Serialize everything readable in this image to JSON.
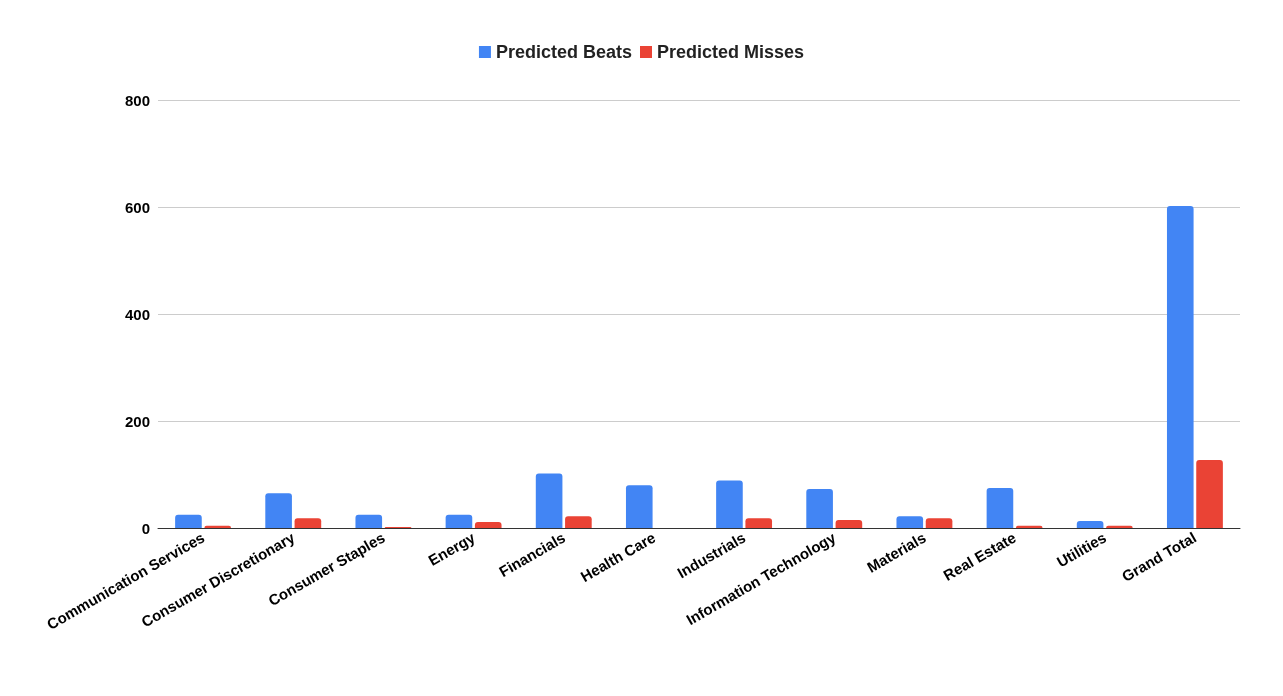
{
  "chart_data": {
    "type": "bar",
    "categories": [
      "Communication Services",
      "Consumer Discretionary",
      "Consumer Staples",
      "Energy",
      "Financials",
      "Health Care",
      "Industrials",
      "Information Technology",
      "Materials",
      "Real Estate",
      "Utilities",
      "Grand Total"
    ],
    "series": [
      {
        "name": "Predicted Beats",
        "color": "#4285f4",
        "values": [
          25,
          65,
          25,
          25,
          102,
          80,
          89,
          73,
          22,
          75,
          13,
          602
        ]
      },
      {
        "name": "Predicted Misses",
        "color": "#ea4335",
        "values": [
          4,
          18,
          2,
          11,
          22,
          0,
          18,
          15,
          18,
          4,
          4,
          127
        ]
      }
    ],
    "ylim": [
      0,
      800
    ],
    "yticks": [
      0,
      200,
      400,
      600,
      800
    ],
    "grid": "y",
    "legend": "top"
  }
}
